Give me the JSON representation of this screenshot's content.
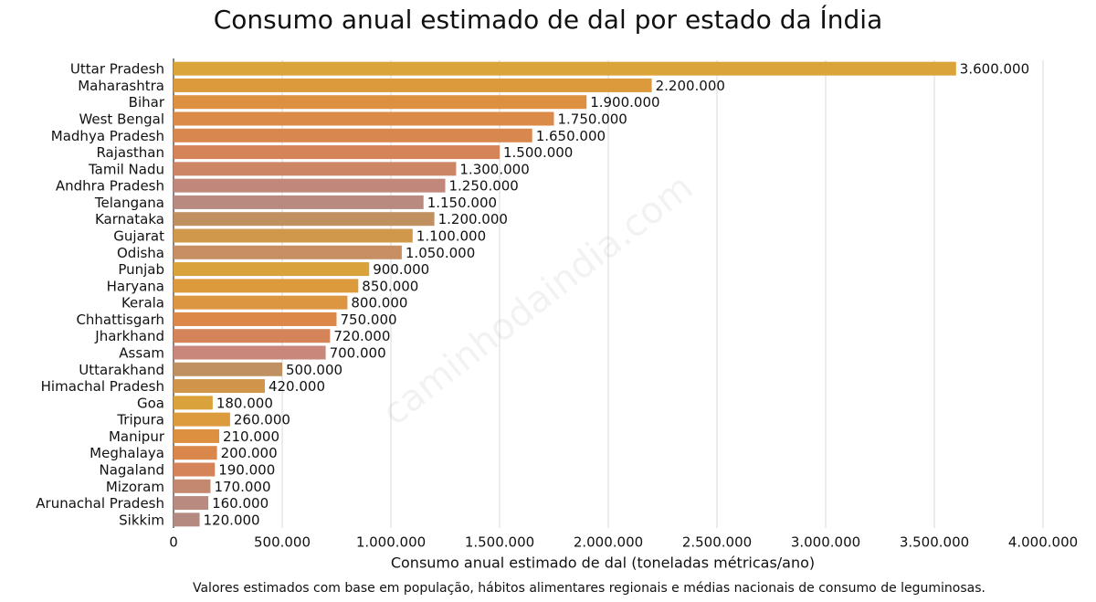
{
  "chart_data": {
    "type": "barh",
    "title": "Consumo anual estimado de dal por estado da Índia",
    "xlabel": "Consumo anual estimado de dal (toneladas métricas/ano)",
    "footnote": "Valores estimados com base em população, hábitos alimentares regionais e médias nacionais de consumo de leguminosas.",
    "watermark": "caminhodaindia.com",
    "categories": [
      "Uttar Pradesh",
      "Maharashtra",
      "Bihar",
      "West Bengal",
      "Madhya Pradesh",
      "Rajasthan",
      "Tamil Nadu",
      "Andhra Pradesh",
      "Telangana",
      "Karnataka",
      "Gujarat",
      "Odisha",
      "Punjab",
      "Haryana",
      "Kerala",
      "Chhattisgarh",
      "Jharkhand",
      "Assam",
      "Uttarakhand",
      "Himachal Pradesh",
      "Goa",
      "Tripura",
      "Manipur",
      "Meghalaya",
      "Nagaland",
      "Mizoram",
      "Arunachal Pradesh",
      "Sikkim"
    ],
    "values": [
      3600000,
      2200000,
      1900000,
      1750000,
      1650000,
      1500000,
      1300000,
      1250000,
      1150000,
      1200000,
      1100000,
      1050000,
      900000,
      850000,
      800000,
      750000,
      720000,
      700000,
      500000,
      420000,
      180000,
      260000,
      210000,
      200000,
      190000,
      170000,
      160000,
      120000
    ],
    "value_labels": [
      "3.600.000",
      "2.200.000",
      "1.900.000",
      "1.750.000",
      "1.650.000",
      "1.500.000",
      "1.300.000",
      "1.250.000",
      "1.150.000",
      "1.200.000",
      "1.100.000",
      "1.050.000",
      "900.000",
      "850.000",
      "800.000",
      "750.000",
      "720.000",
      "700.000",
      "500.000",
      "420.000",
      "180.000",
      "260.000",
      "210.000",
      "200.000",
      "190.000",
      "170.000",
      "160.000",
      "120.000"
    ],
    "colors": [
      "#dba43a",
      "#dc9a3c",
      "#dd9040",
      "#dc8a48",
      "#d8874e",
      "#d48458",
      "#cc8565",
      "#c0877a",
      "#b88a80",
      "#c09060",
      "#d0984a",
      "#c88f62",
      "#daa23a",
      "#db9a3c",
      "#dc9540",
      "#dc8848",
      "#d48458",
      "#c8877a",
      "#c09060",
      "#d0954a",
      "#d9a23a",
      "#dc9b3c",
      "#dd9040",
      "#d9874a",
      "#d48458",
      "#c48870",
      "#b88a80",
      "#b48a80"
    ],
    "xlim": [
      0,
      4000000
    ],
    "xticks": [
      0,
      {
        "value": 500000,
        "label": "500.000"
      },
      {
        "value": 1000000,
        "label": "1.000.000"
      },
      {
        "value": 1500000,
        "label": "1.500.000"
      },
      {
        "value": 2000000,
        "label": "2.000.000"
      },
      {
        "value": 2500000,
        "label": "2.500.000"
      },
      {
        "value": 3000000,
        "label": "3.000.000"
      },
      {
        "value": 3500000,
        "label": "3.500.000"
      },
      {
        "value": 4000000,
        "label": "4.000.000"
      }
    ],
    "grid": true
  }
}
